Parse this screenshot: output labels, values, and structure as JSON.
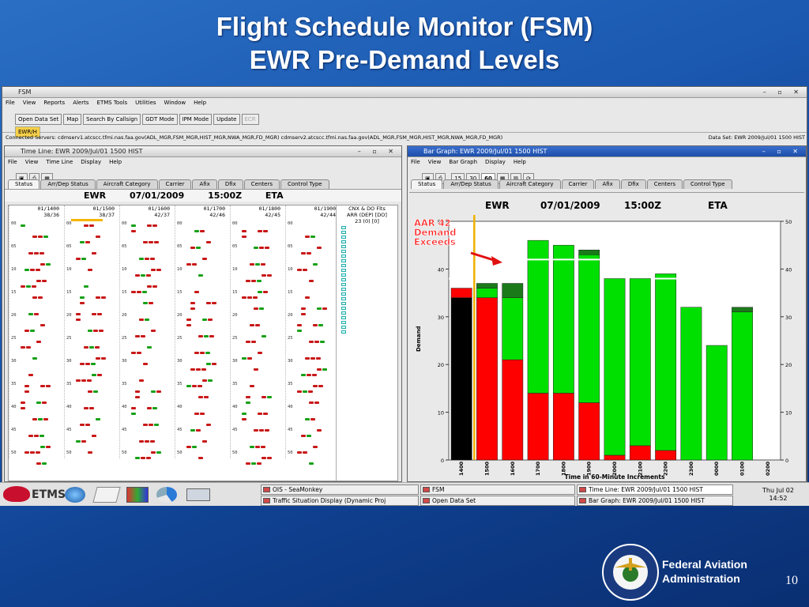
{
  "slide": {
    "title": "Flight Schedule Monitor (FSM)",
    "subtitle": "EWR Pre-Demand Levels",
    "footer_org_line1": "Federal Aviation",
    "footer_org_line2": "Administration",
    "page_number": "10"
  },
  "fsm_window": {
    "title": "FSM",
    "menu": [
      "File",
      "View",
      "Reports",
      "Alerts",
      "ETMS Tools",
      "Utilities",
      "Window",
      "Help"
    ],
    "toolbar": [
      "Open Data Set",
      "Map",
      "Search By Callsign",
      "GDT Mode",
      "IPM Mode",
      "Update"
    ],
    "toolbar_disabled": "ECR",
    "airport_tab": "EWR/H",
    "status_line": "Connected Servers: cdmserv1.atcscc.tfmi.nas.faa.gov(ADL_MGR,FSM_MGR,HIST_MGR,NWA_MGR,FD_MGR) cdmserv2.atcscc.tfmi.nas.faa.gov(ADL_MGR,FSM_MGR,HIST_MGR,NWA_MGR,FD_MGR)",
    "data_set": "Data Set: EWR 2009/Jul/01 1500 HIST"
  },
  "timeline": {
    "title": "Time Line: EWR 2009/Jul/01 1500 HIST",
    "menu": [
      "File",
      "View",
      "Time Line",
      "Display",
      "Help"
    ],
    "tabs": [
      "Status",
      "Arr/Dep Status",
      "Aircraft Category",
      "Carrier",
      "Afix",
      "Dfix",
      "Centers",
      "Control Type"
    ],
    "header": {
      "airport": "EWR",
      "date": "07/01/2009",
      "time": "15:00Z",
      "mode": "ETA"
    },
    "columns": [
      {
        "hour": "01/1400",
        "counts": "38/36"
      },
      {
        "hour": "01/1500",
        "counts": "38/37"
      },
      {
        "hour": "01/1600",
        "counts": "42/37"
      },
      {
        "hour": "01/1700",
        "counts": "42/46"
      },
      {
        "hour": "01/1800",
        "counts": "42/45"
      },
      {
        "hour": "01/1900",
        "counts": "42/44"
      }
    ],
    "cnx_label": "CNX & DO Flts",
    "cnx_sub": "ARR (DEP) [DO]",
    "cnx_values": "23 (0) [0]",
    "minute_ticks": [
      "00",
      "05",
      "10",
      "15",
      "20",
      "25",
      "30",
      "35",
      "40",
      "45",
      "50"
    ]
  },
  "bargraph": {
    "title": "Bar Graph: EWR 2009/Jul/01 1500 HIST",
    "menu": [
      "File",
      "View",
      "Bar Graph",
      "Display",
      "Help"
    ],
    "interval_buttons": [
      "15",
      "30",
      "60"
    ],
    "tabs": [
      "Status",
      "Arr/Dep Status",
      "Aircraft Category",
      "Carrier",
      "Afix",
      "Dfix",
      "Centers",
      "Control Type"
    ],
    "header": {
      "airport": "EWR",
      "date": "07/01/2009",
      "time": "15:00Z",
      "mode": "ETA"
    },
    "annotation": [
      "AAR 42",
      "Demand",
      "Exceeds"
    ]
  },
  "chart_data": {
    "type": "bar",
    "stacked": true,
    "categories": [
      "1400",
      "1500",
      "1600",
      "1700",
      "1800",
      "1900",
      "2000",
      "2100",
      "2200",
      "2300",
      "0000",
      "0100",
      "0200"
    ],
    "series": [
      {
        "color": "#000000",
        "values": [
          34,
          0,
          0,
          0,
          0,
          0,
          0,
          0,
          0,
          0,
          0,
          0,
          0
        ]
      },
      {
        "color": "#ff0000",
        "values": [
          2,
          34,
          21,
          14,
          14,
          12,
          1,
          3,
          2,
          0,
          0,
          0,
          0
        ]
      },
      {
        "color": "#00e000",
        "values": [
          0,
          2,
          13,
          32,
          31,
          31,
          37,
          35,
          37,
          32,
          24,
          31,
          0
        ]
      },
      {
        "color": "#1a7a1a",
        "values": [
          0,
          1,
          3,
          0,
          0,
          1,
          0,
          0,
          0,
          0,
          0,
          1,
          0
        ]
      }
    ],
    "aar_lines": [
      {
        "from": "1400",
        "to": "1500",
        "value": 38
      },
      {
        "from": "1600",
        "to": "2100",
        "value": 42
      },
      {
        "from": "2200",
        "to": "0000",
        "value": 38
      },
      {
        "from": "0000",
        "to": "0200",
        "value": 38
      }
    ],
    "ylabel": "Demand",
    "xlabel": "Time in 60-Minute Increments",
    "ylim": [
      0,
      50
    ],
    "yticks": [
      0,
      10,
      20,
      30,
      40,
      50
    ]
  },
  "taskbar": {
    "items": [
      "OIS - SeaMonkey",
      "Traffic Situation Display (Dynamic Proj",
      "FSM",
      "Open Data Set",
      "Time Line: EWR 2009/Jul/01 1500 HIST",
      "Bar Graph: EWR 2009/Jul/01 1500 HIST"
    ],
    "clock_day": "Thu Jul 02",
    "clock_time": "14:52",
    "logo_text": "ETMS"
  },
  "colors": {
    "slide_bg": "#1b58b0",
    "arrival": "#c81818",
    "departure": "#16a016"
  }
}
